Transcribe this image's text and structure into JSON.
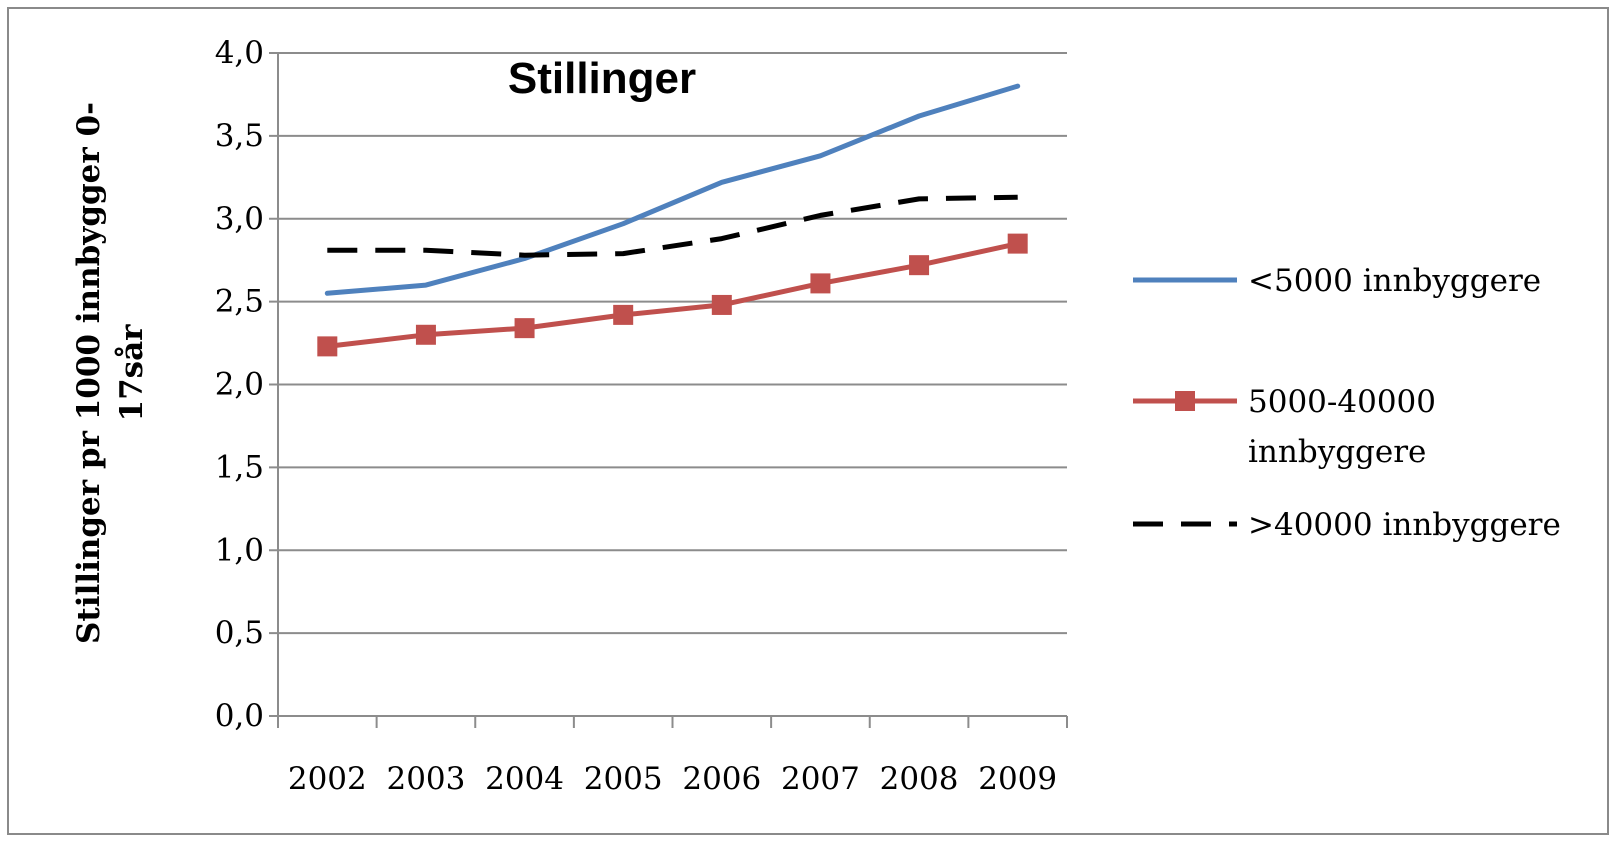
{
  "chart_data": {
    "type": "line",
    "title": "Stillinger",
    "ylabel": [
      "Stillinger pr 1000 innbygger 0-",
      "17sår"
    ],
    "xlabel": "",
    "categories": [
      "2002",
      "2003",
      "2004",
      "2005",
      "2006",
      "2007",
      "2008",
      "2009"
    ],
    "ylim": [
      0,
      4
    ],
    "yticks": [
      "0,0",
      "0,5",
      "1,0",
      "1,5",
      "2,0",
      "2,5",
      "3,0",
      "3,5",
      "4,0"
    ],
    "grid": true,
    "legend_position": "right",
    "series": [
      {
        "name": "<5000 innbyggere",
        "legend_lines": [
          "<5000 innbyggere"
        ],
        "values": [
          2.55,
          2.6,
          2.76,
          2.97,
          3.22,
          3.38,
          3.62,
          3.8
        ],
        "color": "#4F81BD",
        "style": "solid",
        "marker": "none"
      },
      {
        "name": "5000-40000 innbyggere",
        "legend_lines": [
          "5000-40000",
          "innbyggere"
        ],
        "values": [
          2.23,
          2.3,
          2.34,
          2.42,
          2.48,
          2.61,
          2.72,
          2.85
        ],
        "color": "#C0504D",
        "style": "solid",
        "marker": "square"
      },
      {
        "name": ">40000 innbyggere",
        "legend_lines": [
          ">40000 innbyggere"
        ],
        "values": [
          2.81,
          2.81,
          2.78,
          2.79,
          2.88,
          3.02,
          3.12,
          3.13
        ],
        "color": "#000000",
        "style": "dashed",
        "marker": "none"
      }
    ]
  }
}
